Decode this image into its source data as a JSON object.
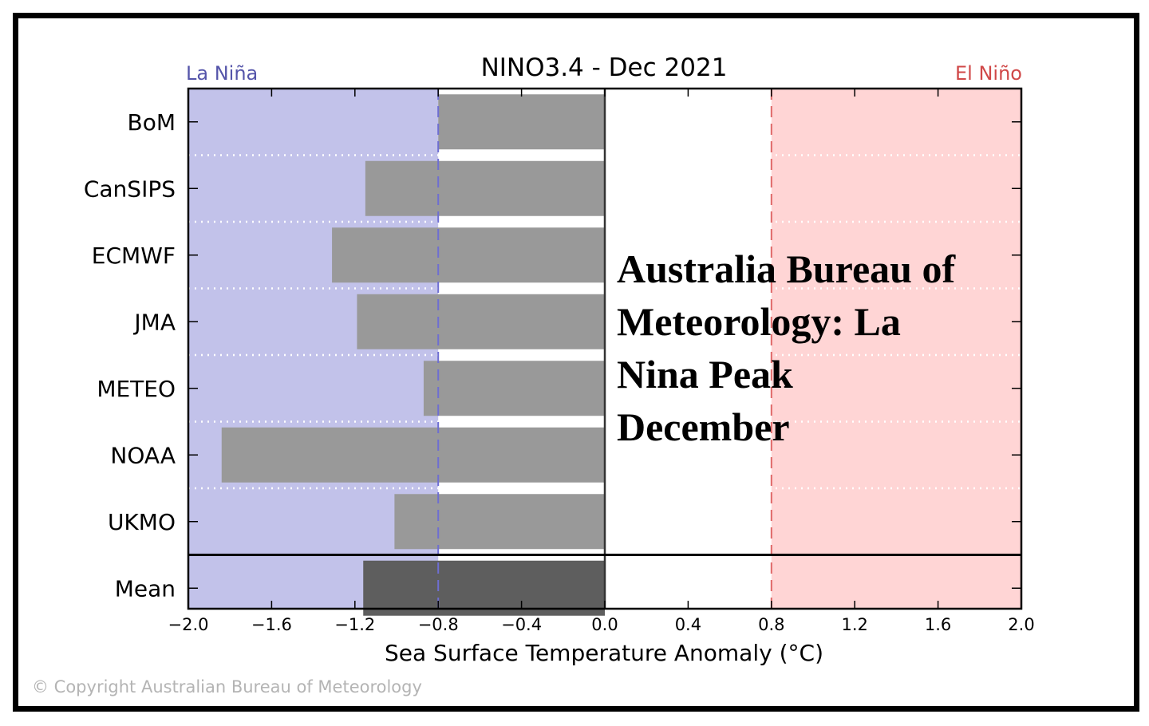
{
  "chart_data": {
    "type": "bar",
    "orientation": "horizontal",
    "title": "NINO3.4 - Dec 2021",
    "xlabel": "Sea Surface Temperature Anomaly (°C)",
    "ylabel": "",
    "xlim": [
      -2.0,
      2.0
    ],
    "xticks": [
      "−2.0",
      "−1.6",
      "−1.2",
      "−0.8",
      "−0.4",
      "0.0",
      "0.4",
      "0.8",
      "1.2",
      "1.6",
      "2.0"
    ],
    "xtick_values": [
      -2.0,
      -1.6,
      -1.2,
      -0.8,
      -0.4,
      0.0,
      0.4,
      0.8,
      1.2,
      1.6,
      2.0
    ],
    "categories": [
      "BoM",
      "CanSIPS",
      "ECMWF",
      "JMA",
      "METEO",
      "NOAA",
      "UKMO",
      "Mean"
    ],
    "values": [
      -0.8,
      -1.15,
      -1.31,
      -1.19,
      -0.87,
      -1.84,
      -1.01,
      -1.16
    ],
    "thresholds": {
      "la_nina": -0.8,
      "el_nino": 0.8
    },
    "regions": [
      {
        "label": "La Niña",
        "from": -2.0,
        "to": -0.8,
        "color": "#c2c2ea",
        "label_color": "#5555aa"
      },
      {
        "label": "El Niño",
        "from": 0.8,
        "to": 2.0,
        "color": "#ffd5d5",
        "label_color": "#d04848"
      }
    ],
    "bar_color": "#999999",
    "mean_bar_color": "#5e5e5e",
    "annotation": "Australia Bureau of Meteorology: La Nina Peak December",
    "grid": "dotted horizontal separators between models"
  },
  "copyright": "© Copyright Australian Bureau of Meteorology"
}
